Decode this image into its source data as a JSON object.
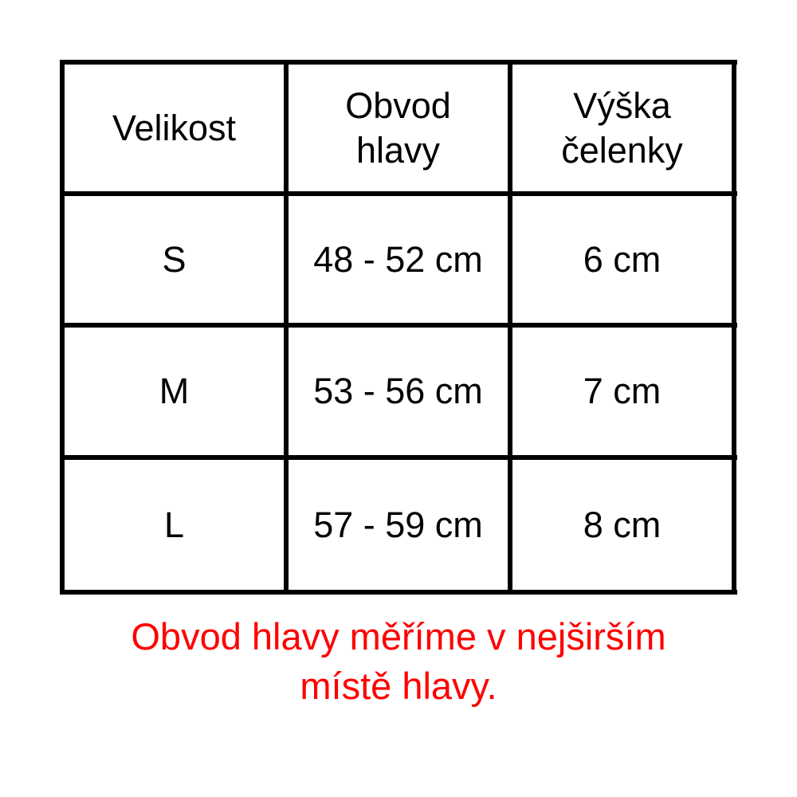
{
  "table": {
    "headers": [
      "Velikost",
      "Obvod\nhlavy",
      "Výška\nčelenky"
    ],
    "rows": [
      [
        "S",
        "48 - 52 cm",
        "6 cm"
      ],
      [
        "M",
        "53 - 56 cm",
        "7 cm"
      ],
      [
        "L",
        "57 - 59 cm",
        "8 cm"
      ]
    ]
  },
  "note": {
    "line1": "Obvod hlavy měříme v nejširším",
    "line2": "místě hlavy.",
    "color": "#ff0000"
  }
}
